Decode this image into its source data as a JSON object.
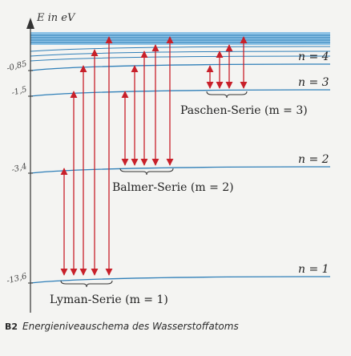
{
  "diagram": {
    "y_axis_label": "E in eV",
    "levels": [
      {
        "n": 1,
        "label": "n = 1",
        "energy": -13.6,
        "tick": "-13,6"
      },
      {
        "n": 2,
        "label": "n = 2",
        "energy": -3.4,
        "tick": "-3,4"
      },
      {
        "n": 3,
        "label": "n = 3",
        "energy": -1.5,
        "tick": "-1,5"
      },
      {
        "n": 4,
        "label": "n = 4",
        "energy": -0.85,
        "tick": "-0,85"
      }
    ],
    "series": [
      {
        "name": "Lyman-Serie (m = 1)",
        "final_level": 1,
        "arrow_count": 5
      },
      {
        "name": "Balmer-Serie (m = 2)",
        "final_level": 2,
        "arrow_count": 5
      },
      {
        "name": "Paschen-Serie (m = 3)",
        "final_level": 3,
        "arrow_count": 4
      }
    ],
    "colors": {
      "arrow": "#c8202a",
      "level_line": "#2f7fb8",
      "continuum_band": "#8ec3e6",
      "axis": "#333333"
    }
  },
  "caption": {
    "number": "B2",
    "text": "Energieniveauschema des Wasserstoffatoms"
  }
}
